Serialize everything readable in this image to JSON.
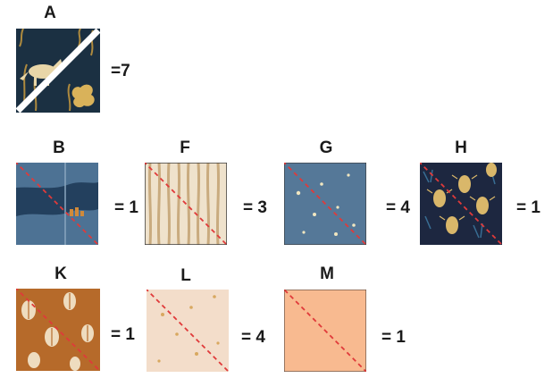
{
  "diagram": {
    "swatches": [
      {
        "id": "A",
        "label": "A",
        "count": "=7",
        "fabric": "navy-fox-print-split-by-white-diagonal"
      },
      {
        "id": "B",
        "label": "B",
        "count": "= 1",
        "fabric": "slate-blue-landscape",
        "color": "#4d7294"
      },
      {
        "id": "F",
        "label": "F",
        "count": "= 3",
        "fabric": "cream-and-tan-vertical-stripes",
        "color": "#efe2cc"
      },
      {
        "id": "G",
        "label": "G",
        "count": "= 4",
        "fabric": "blue-with-small-stars",
        "color": "#557898"
      },
      {
        "id": "H",
        "label": "H",
        "count": "= 1",
        "fabric": "navy-beetle-print",
        "color": "#1d2740"
      },
      {
        "id": "K",
        "label": "K",
        "count": "= 1",
        "fabric": "rust-beetle-print",
        "color": "#b66a2a"
      },
      {
        "id": "L",
        "label": "L",
        "count": "= 4",
        "fabric": "blush-with-gold-stars",
        "color": "#f3ddca"
      },
      {
        "id": "M",
        "label": "M",
        "count": "= 1",
        "fabric": "solid-peach",
        "color": "#f8ba90"
      }
    ],
    "diagonal_color": "#e03a3a"
  }
}
